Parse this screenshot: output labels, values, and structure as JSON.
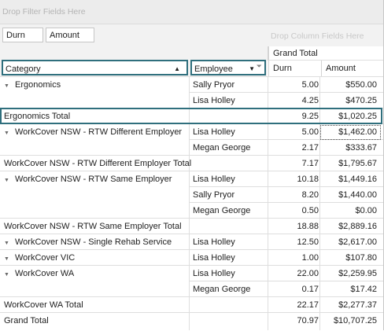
{
  "filter_area": {
    "placeholder": "Drop Filter Fields Here"
  },
  "data_fields": [
    {
      "label": "Durn"
    },
    {
      "label": "Amount"
    }
  ],
  "column_area": {
    "placeholder": "Drop Column Fields Here"
  },
  "column_header": {
    "grand_total": "Grand Total"
  },
  "row_fields": [
    {
      "label": "Category",
      "sort": "asc"
    },
    {
      "label": "Employee",
      "sort": "desc"
    }
  ],
  "measures": {
    "durn": "Durn",
    "amount": "Amount"
  },
  "rows": [
    {
      "category": "Ergonomics",
      "employee": "Sally Pryor",
      "durn": "5.00",
      "amount": "$550.00"
    },
    {
      "category": "",
      "employee": "Lisa Holley",
      "durn": "4.25",
      "amount": "$470.25"
    },
    {
      "total": "Ergonomics Total",
      "durn": "9.25",
      "amount": "$1,020.25"
    },
    {
      "category": "WorkCover NSW - RTW Different Employer",
      "employee": "Lisa Holley",
      "durn": "5.00",
      "amount": "$1,462.00"
    },
    {
      "category": "",
      "employee": "Megan George",
      "durn": "2.17",
      "amount": "$333.67"
    },
    {
      "total": "WorkCover NSW - RTW Different Employer Total",
      "durn": "7.17",
      "amount": "$1,795.67"
    },
    {
      "category": "WorkCover NSW - RTW Same Employer",
      "employee": "Lisa Holley",
      "durn": "10.18",
      "amount": "$1,449.16"
    },
    {
      "category": "",
      "employee": "Sally Pryor",
      "durn": "8.20",
      "amount": "$1,440.00"
    },
    {
      "category": "",
      "employee": "Megan George",
      "durn": "0.50",
      "amount": "$0.00"
    },
    {
      "total": "WorkCover NSW - RTW Same Employer Total",
      "durn": "18.88",
      "amount": "$2,889.16"
    },
    {
      "category": "WorkCover NSW - Single Rehab Service",
      "employee": "Lisa Holley",
      "durn": "12.50",
      "amount": "$2,617.00"
    },
    {
      "category": "WorkCover VIC",
      "employee": "Lisa Holley",
      "durn": "1.00",
      "amount": "$107.80"
    },
    {
      "category": "WorkCover WA",
      "employee": "Lisa Holley",
      "durn": "22.00",
      "amount": "$2,259.95"
    },
    {
      "category": "",
      "employee": "Megan George",
      "durn": "0.17",
      "amount": "$17.42"
    },
    {
      "total": "WorkCover WA Total",
      "durn": "22.17",
      "amount": "$2,277.37"
    },
    {
      "total": "Grand Total",
      "durn": "70.97",
      "amount": "$10,707.25"
    }
  ],
  "colors": {
    "accent": "#2f6f7d",
    "header_bg": "#f2f2f2",
    "grid": "#dedede"
  },
  "icons": {
    "expand": "triangle-down-icon",
    "sort_asc": "sort-asc-icon",
    "sort_desc": "sort-desc-icon",
    "filter": "funnel-icon"
  }
}
